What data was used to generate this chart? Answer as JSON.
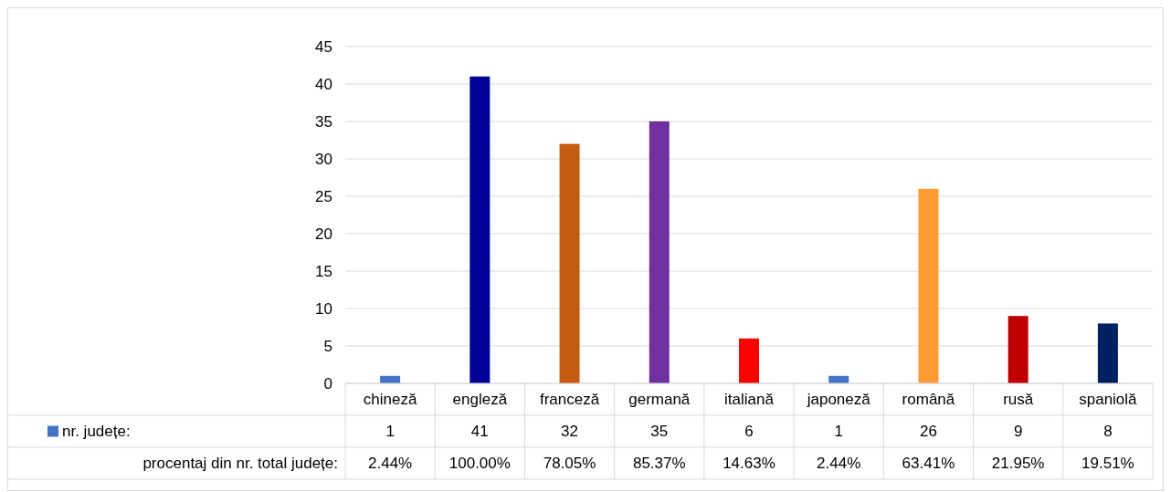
{
  "chart_data": {
    "type": "bar",
    "categories": [
      "chineză",
      "engleză",
      "franceză",
      "germană",
      "italiană",
      "japoneză",
      "română",
      "rusă",
      "spaniolă"
    ],
    "series": [
      {
        "name": "nr. județe:",
        "color": "#4472c4",
        "colors": [
          "#4472c4",
          "#000099",
          "#c55a11",
          "#7030a0",
          "#ff0000",
          "#4472c4",
          "#ff9933",
          "#c00000",
          "#002060"
        ],
        "values": [
          1,
          41,
          32,
          35,
          6,
          1,
          26,
          9,
          8
        ]
      }
    ],
    "ylim": [
      0,
      45
    ],
    "yticks": [
      0,
      5,
      10,
      15,
      20,
      25,
      30,
      35,
      40,
      45
    ],
    "grid": "y",
    "legend": "bottom",
    "data_labels": true,
    "annotations": [
      "procentaj din nr. total județe:",
      "2.44%",
      "100.00%",
      "78.05%",
      "85.37%",
      "14.63%",
      "2.44%",
      "63.41%",
      "21.95%",
      "19.51%"
    ]
  }
}
